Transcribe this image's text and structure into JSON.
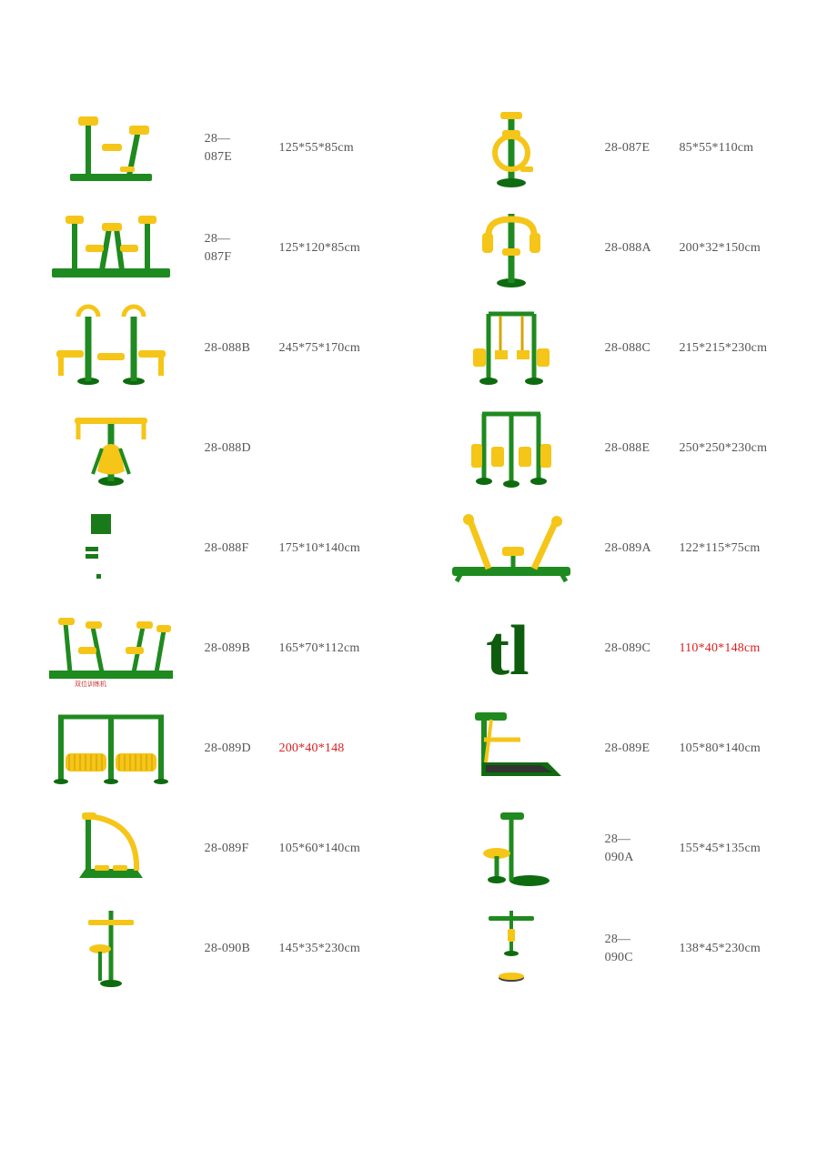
{
  "palette": {
    "green": "#1f8a1f",
    "darkgreen": "#0f6b0f",
    "yellow": "#f5c518",
    "darkyellow": "#d6a50a",
    "text": "#555555",
    "red": "#d92020",
    "background": "#ffffff"
  },
  "font": {
    "family": "Songti SC / SimSun / serif",
    "size_pt": 11
  },
  "rows": [
    {
      "left": {
        "svg": "rider-single",
        "code": "28—\n087E",
        "dim": "125*55*85cm"
      },
      "right": {
        "svg": "cycle-single",
        "code": "28-087E",
        "dim": "85*55*110cm"
      }
    },
    {
      "left": {
        "svg": "rider-double",
        "code": "28—\n087F",
        "dim": "125*120*85cm"
      },
      "right": {
        "svg": "pulldown",
        "code": "28-088A",
        "dim": "200*32*150cm"
      }
    },
    {
      "left": {
        "svg": "press-double",
        "code": "28-088B",
        "dim": "245*75*170cm"
      },
      "right": {
        "svg": "frame-press",
        "code": "28-088C",
        "dim": "215*215*230cm"
      }
    },
    {
      "left": {
        "svg": "swing-surf",
        "code": "28-088D",
        "dim": ""
      },
      "right": {
        "svg": "quad-frame",
        "code": "28-088E",
        "dim": "250*250*230cm"
      }
    },
    {
      "left": {
        "svg": "broken",
        "code": "28-088F",
        "dim": "175*10*140cm"
      },
      "right": {
        "svg": "rower",
        "code": "28-089A",
        "dim": "122*115*75cm"
      }
    },
    {
      "left": {
        "svg": "multi-rider",
        "code": "28-089B",
        "dim": "165*70*112cm"
      },
      "right": {
        "svg": "tl-placeholder",
        "code": "28-089C",
        "dim": "110*40*148cm",
        "dim_red": true
      }
    },
    {
      "left": {
        "svg": "roller-bars",
        "code": "28-089D",
        "dim": "200*40*148",
        "dim_red": true
      },
      "right": {
        "svg": "treadmill",
        "code": "28-089E",
        "dim": "105*80*140cm"
      }
    },
    {
      "left": {
        "svg": "walker-arc",
        "code": "28-089F",
        "dim": "105*60*140cm"
      },
      "right": {
        "svg": "twist-stool",
        "code": "28—\n090A",
        "dim": "155*45*135cm"
      }
    },
    {
      "left": {
        "svg": "tall-twist",
        "code": "28-090B",
        "dim": "145*35*230cm"
      },
      "right": {
        "svg": "pole-disc",
        "code": "28—\n090C",
        "dim": "138*45*230cm"
      }
    }
  ]
}
